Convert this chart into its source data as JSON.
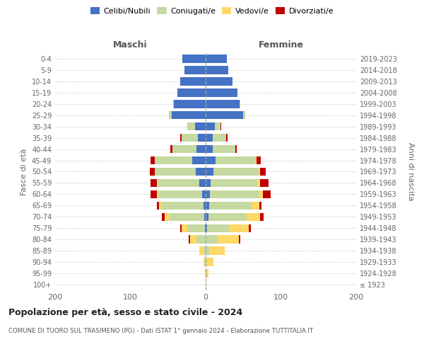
{
  "age_groups": [
    "100+",
    "95-99",
    "90-94",
    "85-89",
    "80-84",
    "75-79",
    "70-74",
    "65-69",
    "60-64",
    "55-59",
    "50-54",
    "45-49",
    "40-44",
    "35-39",
    "30-34",
    "25-29",
    "20-24",
    "15-19",
    "10-14",
    "5-9",
    "0-4"
  ],
  "birth_years": [
    "≤ 1923",
    "1924-1928",
    "1929-1933",
    "1934-1938",
    "1939-1943",
    "1944-1948",
    "1949-1953",
    "1954-1958",
    "1959-1963",
    "1964-1968",
    "1969-1973",
    "1974-1978",
    "1979-1983",
    "1984-1988",
    "1989-1993",
    "1994-1998",
    "1999-2003",
    "2004-2008",
    "2009-2013",
    "2014-2018",
    "2019-2023"
  ],
  "colors": {
    "celibi": "#4472c4",
    "coniugati": "#c5d9a0",
    "vedovi": "#ffd966",
    "divorziati": "#c00000"
  },
  "males": {
    "celibi": [
      0,
      0,
      0,
      0,
      0,
      1,
      2,
      3,
      5,
      8,
      13,
      18,
      12,
      10,
      14,
      45,
      42,
      38,
      34,
      28,
      31
    ],
    "coniugati": [
      0,
      0,
      1,
      3,
      12,
      23,
      46,
      55,
      58,
      56,
      55,
      50,
      32,
      22,
      10,
      4,
      1,
      0,
      0,
      0,
      0
    ],
    "vedovi": [
      0,
      1,
      2,
      5,
      9,
      8,
      6,
      4,
      2,
      1,
      0,
      0,
      0,
      0,
      0,
      0,
      0,
      0,
      0,
      0,
      0
    ],
    "divorziati": [
      0,
      0,
      0,
      0,
      2,
      2,
      4,
      3,
      8,
      8,
      6,
      5,
      3,
      2,
      0,
      0,
      0,
      0,
      0,
      0,
      0
    ]
  },
  "females": {
    "nubili": [
      0,
      0,
      0,
      0,
      0,
      2,
      4,
      5,
      6,
      7,
      10,
      13,
      9,
      9,
      12,
      50,
      45,
      42,
      36,
      30,
      28
    ],
    "coniugate": [
      0,
      1,
      2,
      5,
      16,
      30,
      50,
      56,
      65,
      62,
      60,
      54,
      30,
      18,
      8,
      3,
      1,
      0,
      0,
      0,
      0
    ],
    "vedove": [
      1,
      3,
      8,
      20,
      28,
      25,
      18,
      10,
      5,
      3,
      2,
      1,
      0,
      0,
      0,
      0,
      0,
      0,
      0,
      0,
      0
    ],
    "divorziate": [
      0,
      0,
      0,
      0,
      2,
      3,
      5,
      3,
      10,
      12,
      8,
      5,
      2,
      2,
      1,
      0,
      0,
      0,
      0,
      0,
      0
    ]
  },
  "xlim": 200,
  "title": "Popolazione per età, sesso e stato civile - 2024",
  "subtitle": "COMUNE DI TUORO SUL TRASIMENO (PG) - Dati ISTAT 1° gennaio 2024 - Elaborazione TUTTITALIA.IT",
  "ylabel_left": "Fasce di età",
  "ylabel_right": "Anni di nascita",
  "label_maschi": "Maschi",
  "label_femmine": "Femmine",
  "bg_color": "#ffffff",
  "grid_color": "#cccccc"
}
